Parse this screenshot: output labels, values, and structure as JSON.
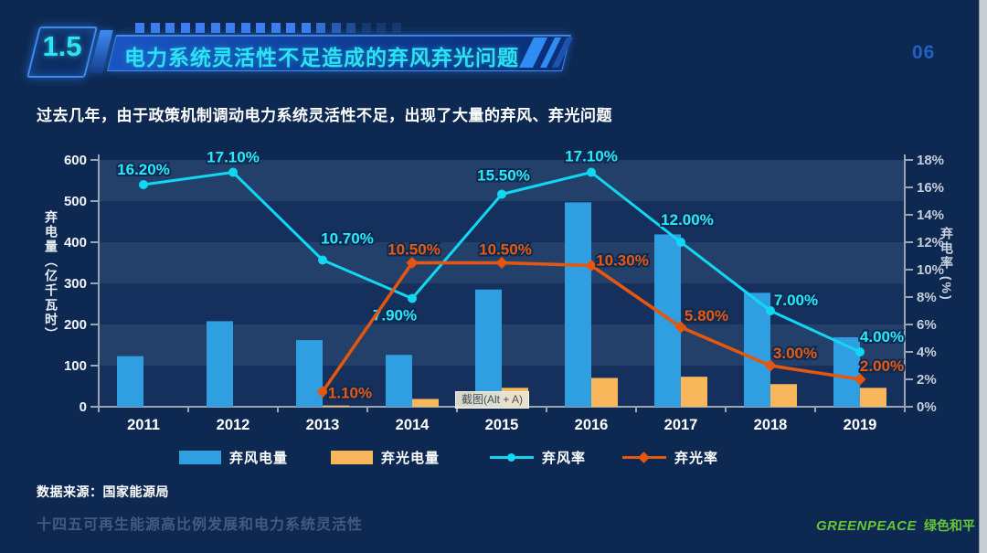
{
  "page": {
    "number": "06",
    "bg": "#0d2952"
  },
  "header": {
    "section_number": "1.5",
    "title": "电力系统灵活性不足造成的弃风弃光问题"
  },
  "subtitle": "过去几年，由于政策机制调动电力系统灵活性不足，出现了大量的弃风、弃光问题",
  "chart_data": {
    "type": "bar+line",
    "categories": [
      "2011",
      "2012",
      "2013",
      "2014",
      "2015",
      "2016",
      "2017",
      "2018",
      "2019"
    ],
    "series": [
      {
        "name": "弃风电量",
        "type": "bar",
        "axis": "left",
        "color": "#2f9fe1",
        "values": [
          123,
          208,
          162,
          126,
          285,
          497,
          419,
          277,
          169
        ]
      },
      {
        "name": "弃光电量",
        "type": "bar",
        "axis": "left",
        "color": "#f9b75b",
        "values": [
          null,
          null,
          3,
          19,
          46,
          70,
          73,
          55,
          46
        ]
      },
      {
        "name": "弃风率",
        "type": "line",
        "axis": "right",
        "color": "#12d7f2",
        "marker": "circle",
        "values": [
          16.2,
          17.1,
          10.7,
          7.9,
          15.5,
          17.1,
          12.0,
          7.0,
          4.0
        ],
        "labels": [
          "16.20%",
          "17.10%",
          "10.70%",
          "7.90%",
          "15.50%",
          "17.10%",
          "12.00%",
          "7.00%",
          "4.00%"
        ],
        "label_color": "#2ae9f9"
      },
      {
        "name": "弃光率",
        "type": "line",
        "axis": "right",
        "color": "#e5570e",
        "marker": "diamond",
        "values": [
          null,
          null,
          1.1,
          10.5,
          10.5,
          10.3,
          5.8,
          3.0,
          2.0
        ],
        "labels": [
          null,
          null,
          "1.10%",
          "10.50%",
          "10.50%",
          "10.30%",
          "5.80%",
          "3.00%",
          "2.00%"
        ],
        "label_color": "#e8590f"
      }
    ],
    "left_axis": {
      "title": "弃电量（亿千瓦时）",
      "min": 0,
      "max": 600,
      "step": 100,
      "ticks": [
        "0",
        "100",
        "200",
        "300",
        "400",
        "500",
        "600"
      ]
    },
    "right_axis": {
      "title": "弃电率 (%)",
      "min": 0,
      "max": 18,
      "step": 2,
      "ticks": [
        "0%",
        "2%",
        "4%",
        "6%",
        "8%",
        "10%",
        "12%",
        "14%",
        "16%",
        "18%"
      ]
    },
    "legend_position": "bottom",
    "grid": "horizontal-bands",
    "band_colors": {
      "dark": "#15305c",
      "light": "#23406b"
    }
  },
  "tooltip": {
    "text": "截图(Alt + A)"
  },
  "source": "数据来源：国家能源局",
  "footer_title": "十四五可再生能源高比例发展和电力系统灵活性",
  "logo": {
    "en": "GREENPEACE",
    "zh": "绿色和平",
    "color": "#68c437"
  }
}
